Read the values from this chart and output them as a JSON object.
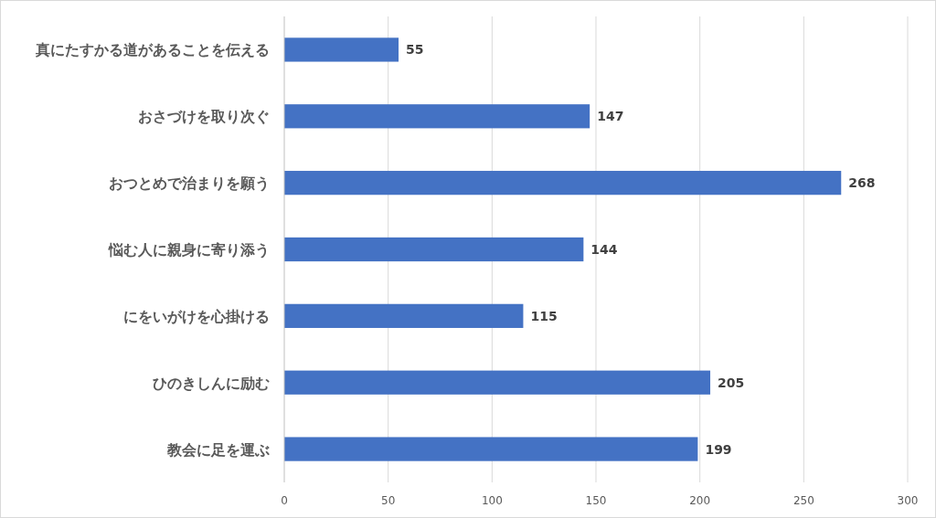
{
  "chart_data": {
    "type": "bar",
    "orientation": "horizontal",
    "categories": [
      "真にたすかる道があることを伝える",
      "おさづけを取り次ぐ",
      "おつとめで治まりを願う",
      "悩む人に親身に寄り添う",
      "にをいがけを心掛ける",
      "ひのきしんに励む",
      "教会に足を運ぶ"
    ],
    "values": [
      55,
      147,
      268,
      144,
      115,
      205,
      199
    ],
    "color": "#4472c4",
    "xlim": [
      0,
      300
    ],
    "xticks": [
      0,
      50,
      100,
      150,
      200,
      250,
      300
    ],
    "grid": "x",
    "data_labels": true
  }
}
